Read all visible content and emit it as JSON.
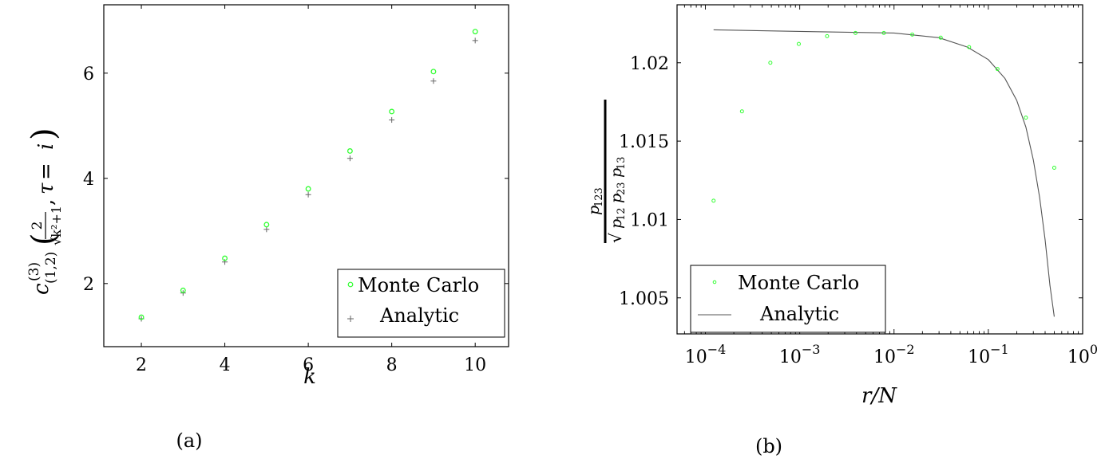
{
  "figure": {
    "panel_a_caption": "(a)",
    "panel_b_caption": "(b)"
  },
  "chart_data": [
    {
      "type": "scatter",
      "panel": "a",
      "xlabel": "k",
      "ylabel": "c^{(3)}_{(1,2)}(2/√(k²+1), τ = i)",
      "xlim": [
        1.1,
        10.8
      ],
      "ylim": [
        0.8,
        7.3
      ],
      "xticks": [
        "2",
        "4",
        "6",
        "8",
        "10"
      ],
      "yticks": [
        "2",
        "4",
        "6"
      ],
      "legend_position": "bottom-right",
      "series": [
        {
          "name": "Monte Carlo",
          "marker": "circle",
          "color": "#33ff33",
          "x": [
            2,
            3,
            4,
            5,
            6,
            7,
            8,
            9,
            10
          ],
          "y": [
            1.36,
            1.87,
            2.48,
            3.12,
            3.8,
            4.52,
            5.27,
            6.03,
            6.79
          ]
        },
        {
          "name": "Analytic",
          "marker": "plus",
          "color": "#666666",
          "x": [
            2,
            3,
            4,
            5,
            6,
            7,
            8,
            9,
            10
          ],
          "y": [
            1.33,
            1.82,
            2.41,
            3.03,
            3.69,
            4.38,
            5.11,
            5.85,
            6.62
          ]
        }
      ]
    },
    {
      "type": "line",
      "panel": "b",
      "xlabel": "r/N",
      "ylabel": "p123 / √(p12 p23 p13)",
      "xscale": "log",
      "xlim": [
        5e-05,
        1
      ],
      "ylim": [
        1.0027,
        1.0237
      ],
      "xticks": [
        "10^-4",
        "10^-3",
        "10^-2",
        "10^-1",
        "10^0"
      ],
      "yticks": [
        "1.005",
        "1.01",
        "1.015",
        "1.02"
      ],
      "legend_position": "bottom-left",
      "series": [
        {
          "name": "Monte Carlo",
          "marker": "circle",
          "color": "#33ff33",
          "x": [
            0.000122,
            0.000244,
            0.000488,
            0.000977,
            0.00195,
            0.0039,
            0.0078,
            0.0156,
            0.03125,
            0.0625,
            0.125,
            0.25,
            0.5
          ],
          "y": [
            1.0112,
            1.0169,
            1.02,
            1.0212,
            1.0217,
            1.0219,
            1.0219,
            1.0218,
            1.0216,
            1.021,
            1.0196,
            1.0165,
            1.0133
          ]
        },
        {
          "name": "Analytic",
          "style": "line",
          "color": "#555555",
          "x": [
            0.000122,
            0.001,
            0.01,
            0.03,
            0.06,
            0.1,
            0.15,
            0.2,
            0.25,
            0.3,
            0.35,
            0.4,
            0.45,
            0.5
          ],
          "y": [
            1.0221,
            1.022,
            1.0219,
            1.0216,
            1.021,
            1.0202,
            1.019,
            1.0176,
            1.0159,
            1.0138,
            1.0114,
            1.0087,
            1.0058,
            1.0038
          ]
        }
      ]
    }
  ]
}
